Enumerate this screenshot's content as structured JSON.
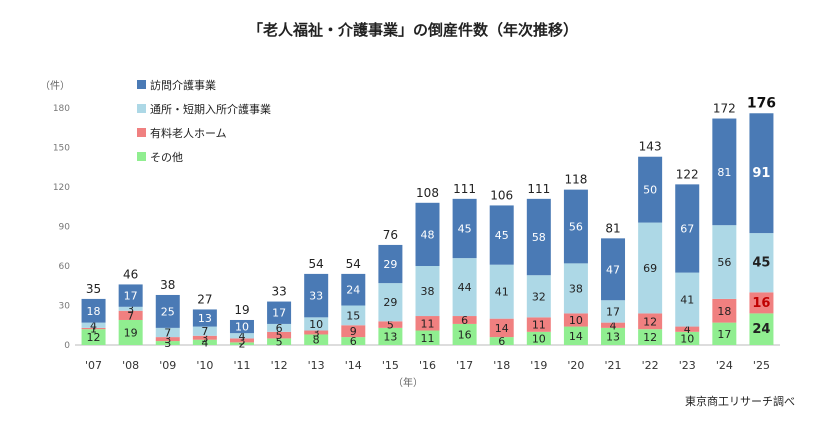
{
  "chart_data": {
    "type": "bar",
    "stacked": true,
    "title": "「老人福祉・介護事業」の倒産件数（年次推移）",
    "ylabel": "（件）",
    "xlabel": "（年）",
    "ylim": [
      0,
      180
    ],
    "yticks": [
      0,
      30,
      60,
      90,
      120,
      150,
      180
    ],
    "categories": [
      "'07",
      "'08",
      "'09",
      "'10",
      "'11",
      "'12",
      "'13",
      "'14",
      "'15",
      "'16",
      "'17",
      "'18",
      "'19",
      "'20",
      "'21",
      "'22",
      "'23",
      "'24",
      "'25"
    ],
    "series": [
      {
        "name": "その他",
        "color": "#90ee90",
        "values": [
          12,
          19,
          3,
          4,
          2,
          5,
          8,
          6,
          13,
          11,
          16,
          6,
          10,
          14,
          13,
          12,
          10,
          17,
          24
        ]
      },
      {
        "name": "有料老人ホーム",
        "color": "#f08080",
        "values": [
          1,
          7,
          3,
          3,
          3,
          5,
          3,
          9,
          5,
          11,
          6,
          14,
          11,
          10,
          4,
          12,
          4,
          18,
          16
        ]
      },
      {
        "name": "通所・短期入所介護事業",
        "color": "#add8e6",
        "values": [
          4,
          3,
          7,
          7,
          4,
          6,
          10,
          15,
          29,
          38,
          44,
          41,
          32,
          38,
          17,
          69,
          41,
          56,
          45
        ]
      },
      {
        "name": "訪問介護事業",
        "color": "#4a7ab5",
        "values": [
          18,
          17,
          25,
          13,
          10,
          17,
          33,
          24,
          29,
          48,
          45,
          45,
          58,
          56,
          47,
          50,
          67,
          81,
          91
        ]
      }
    ],
    "totals": [
      35,
      46,
      38,
      27,
      19,
      33,
      54,
      54,
      76,
      108,
      111,
      106,
      111,
      118,
      81,
      143,
      122,
      172,
      176
    ],
    "legend_order": [
      "訪問介護事業",
      "通所・短期入所介護事業",
      "有料老人ホーム",
      "その他"
    ],
    "legend_position": "top-left",
    "grid": false,
    "source": "東京商工リサーチ調べ"
  }
}
